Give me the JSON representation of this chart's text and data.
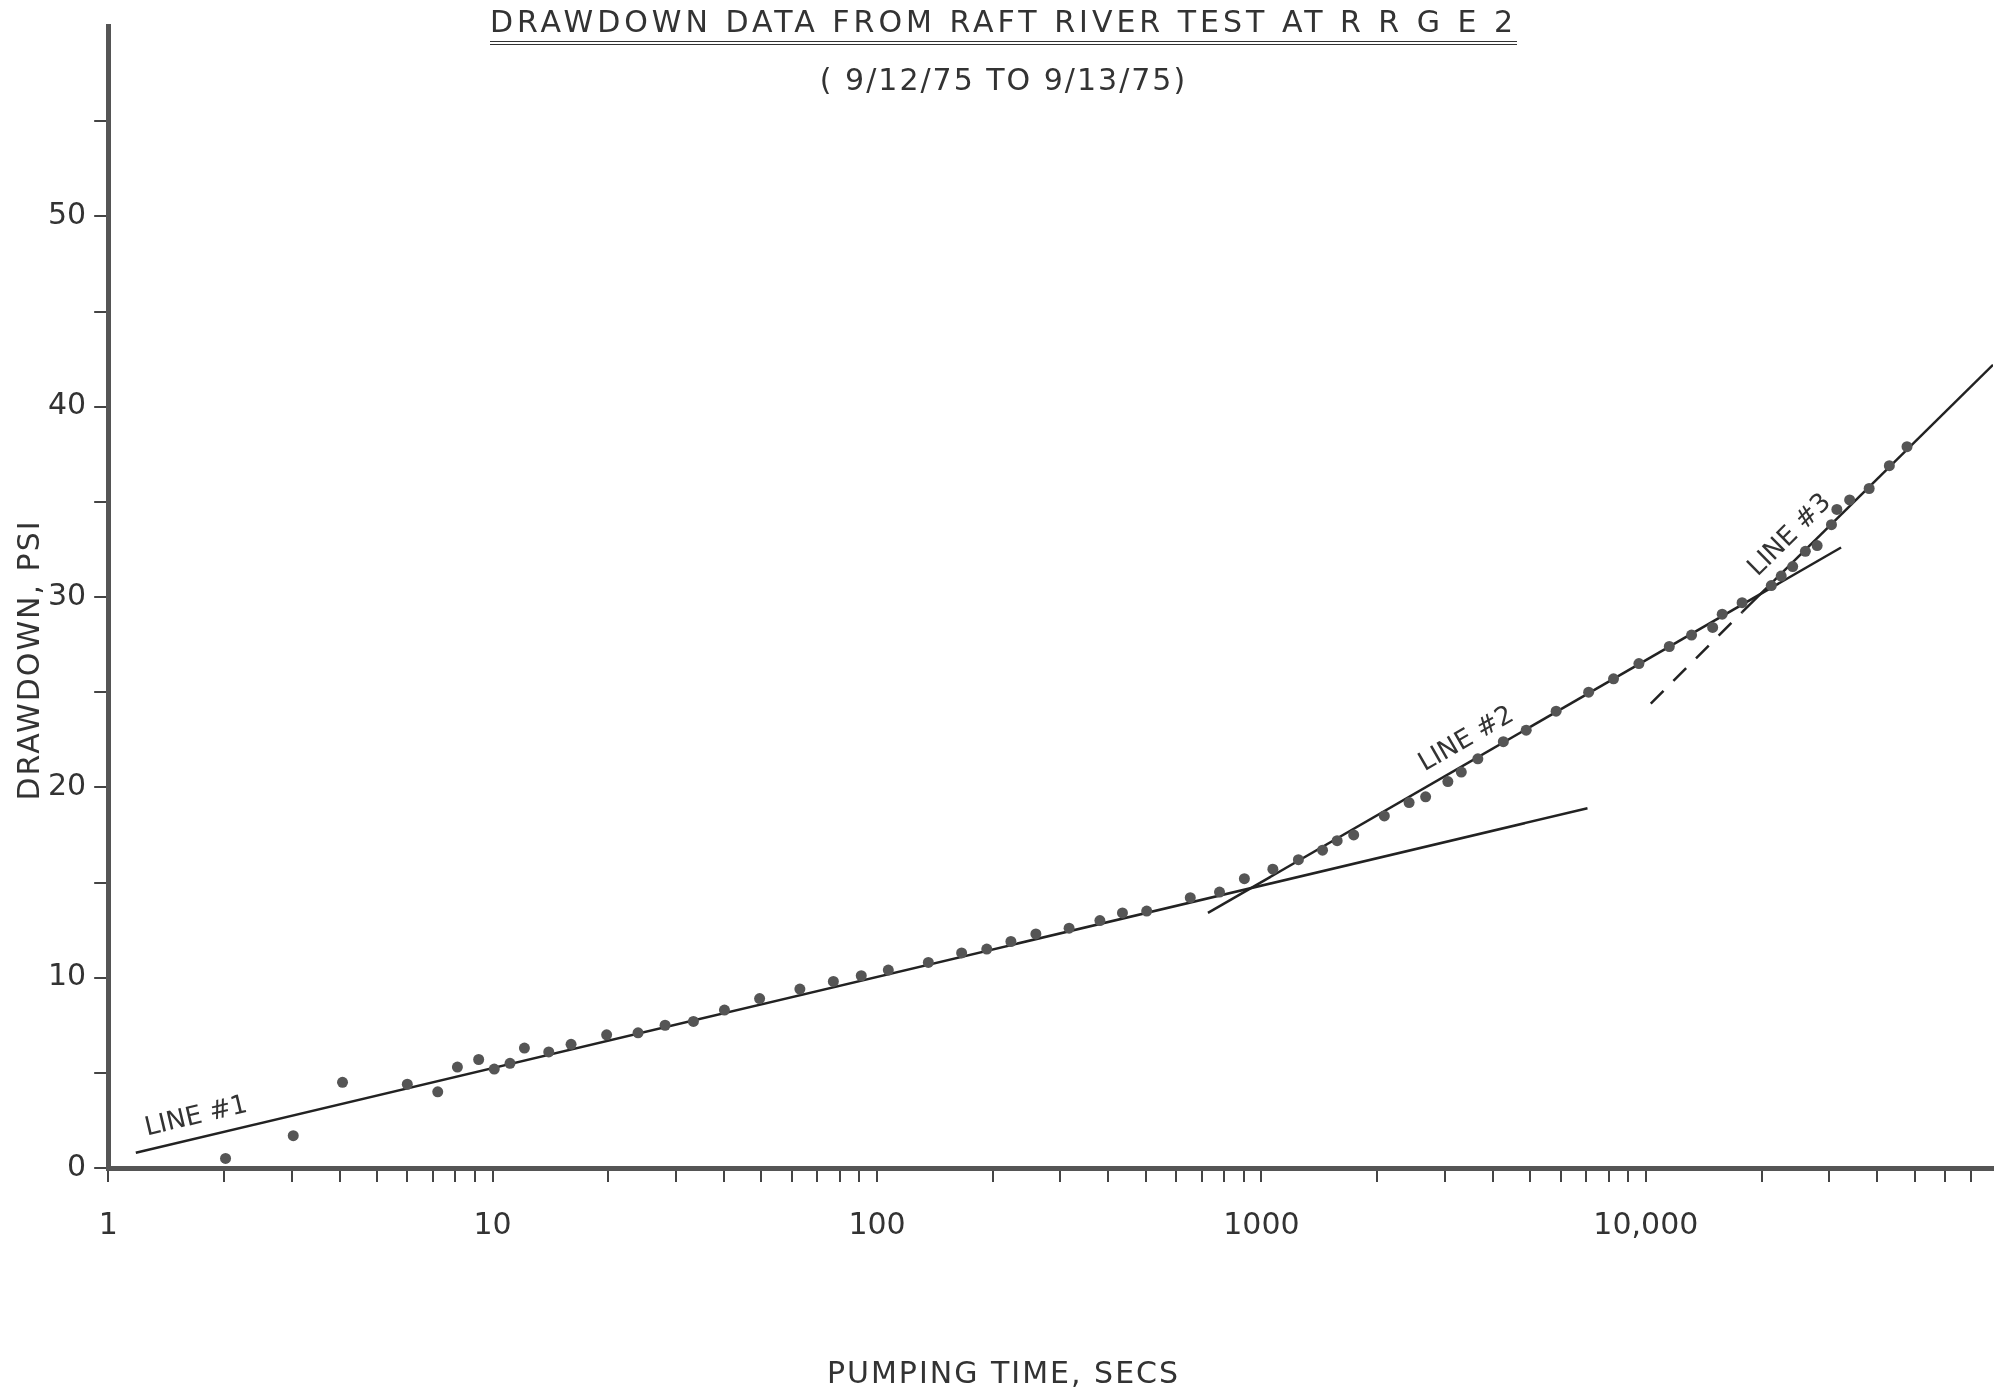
{
  "chart_data": {
    "type": "scatter",
    "title": "DRAWDOWN DATA FROM RAFT RIVER TEST AT R R G E 2",
    "subtitle": "( 9/12/75 TO 9/13/75)",
    "xlabel": "PUMPING TIME, SECS",
    "ylabel": "DRAWDOWN, PSI",
    "log": "x",
    "grid": false,
    "xlim": [
      1,
      80000
    ],
    "ylim": [
      0,
      60
    ],
    "xticks": [
      1,
      {
        "value": 2,
        "label": null
      },
      {
        "value": 3,
        "label": null
      },
      {
        "value": 4,
        "label": null
      },
      {
        "value": 5,
        "label": null
      },
      {
        "value": 6,
        "label": null
      },
      {
        "value": 7,
        "label": null
      },
      {
        "value": 8,
        "label": null
      },
      {
        "value": 9,
        "label": null
      },
      10,
      {
        "value": 20,
        "label": null
      },
      {
        "value": 30,
        "label": null
      },
      {
        "value": 40,
        "label": null
      },
      {
        "value": 50,
        "label": null
      },
      {
        "value": 60,
        "label": null
      },
      {
        "value": 70,
        "label": null
      },
      {
        "value": 80,
        "label": null
      },
      {
        "value": 90,
        "label": null
      },
      100,
      {
        "value": 200,
        "label": null
      },
      {
        "value": 300,
        "label": null
      },
      {
        "value": 400,
        "label": null
      },
      {
        "value": 500,
        "label": null
      },
      {
        "value": 600,
        "label": null
      },
      {
        "value": 700,
        "label": null
      },
      {
        "value": 800,
        "label": null
      },
      {
        "value": 900,
        "label": null
      },
      1000,
      {
        "value": 2000,
        "label": null
      },
      {
        "value": 3000,
        "label": null
      },
      {
        "value": 4000,
        "label": null
      },
      {
        "value": 5000,
        "label": null
      },
      {
        "value": 6000,
        "label": null
      },
      {
        "value": 7000,
        "label": null
      },
      {
        "value": 8000,
        "label": null
      },
      {
        "value": 9000,
        "label": null
      },
      {
        "value": 10000,
        "label": "10,000"
      },
      {
        "value": 20000,
        "label": null
      },
      {
        "value": 30000,
        "label": null
      },
      {
        "value": 40000,
        "label": null
      },
      {
        "value": 50000,
        "label": null
      },
      {
        "value": 60000,
        "label": null
      },
      {
        "value": 70000,
        "label": null
      }
    ],
    "yticks": [
      0,
      {
        "value": 5,
        "label": null
      },
      10,
      {
        "value": 15,
        "label": null
      },
      20,
      {
        "value": 25,
        "label": null
      },
      30,
      {
        "value": 35,
        "label": null
      },
      40,
      {
        "value": 45,
        "label": null
      },
      50,
      {
        "value": 55,
        "label": null
      }
    ],
    "series": [
      {
        "type": "scatter",
        "color": "#555555",
        "marker": "circle",
        "x": [
          2.02,
          3.03,
          4.07,
          6.0,
          7.2,
          8.1,
          9.2,
          10.1,
          11.1,
          12.1,
          14.0,
          16.0,
          19.8,
          23.9,
          28.1,
          33.3,
          40.1,
          49.5,
          63,
          77,
          91,
          107,
          136,
          166,
          193,
          223,
          259,
          316,
          380,
          435,
          503,
          653,
          778,
          903,
          1071,
          1248,
          1442,
          1574,
          1738,
          2088,
          2422,
          2674,
          3055,
          3311,
          3656,
          4259,
          4885,
          5843,
          7099,
          8240,
          9594,
          11510,
          13150,
          14920,
          15800,
          17800,
          21200,
          22500,
          24100,
          26000,
          27900,
          30400,
          31400,
          33900,
          38100,
          43000,
          47800
        ],
        "values": [
          0.5,
          1.7,
          4.5,
          4.4,
          4.0,
          5.3,
          5.7,
          5.2,
          5.5,
          6.3,
          6.1,
          6.5,
          7.0,
          7.1,
          7.5,
          7.7,
          8.3,
          8.9,
          9.4,
          9.8,
          10.1,
          10.4,
          10.8,
          11.3,
          11.5,
          11.9,
          12.3,
          12.6,
          13.0,
          13.4,
          13.5,
          14.2,
          14.5,
          15.2,
          15.7,
          16.2,
          16.7,
          17.2,
          17.5,
          18.5,
          19.2,
          19.5,
          20.3,
          20.8,
          21.5,
          22.4,
          23.0,
          24.0,
          25.0,
          25.7,
          26.5,
          27.4,
          28.0,
          28.4,
          29.1,
          29.7,
          30.6,
          31.1,
          31.6,
          32.4,
          32.7,
          33.8,
          34.6,
          35.1,
          35.7,
          36.9,
          37.9
        ]
      },
      {
        "type": "line",
        "name": "LINE #1",
        "color": "#222222",
        "marker": "none",
        "line_style": "solid",
        "x": [
          1.18,
          7050
        ],
        "values": [
          0.8,
          18.9
        ]
      },
      {
        "type": "line",
        "name": "LINE #2",
        "color": "#222222",
        "marker": "none",
        "line_style": "solid",
        "x": [
          726,
          32200
        ],
        "values": [
          13.4,
          32.6
        ]
      },
      {
        "type": "line",
        "name": "LINE #3",
        "color": "#222222",
        "marker": "none",
        "line_style": "solid",
        "x": [
          17800,
          80000
        ],
        "values": [
          29.2,
          42.2
        ]
      },
      {
        "type": "line",
        "color": "#222222",
        "marker": "none",
        "line_style": "dashed",
        "x": [
          10300,
          17800
        ],
        "values": [
          24.4,
          29.2
        ]
      }
    ]
  }
}
